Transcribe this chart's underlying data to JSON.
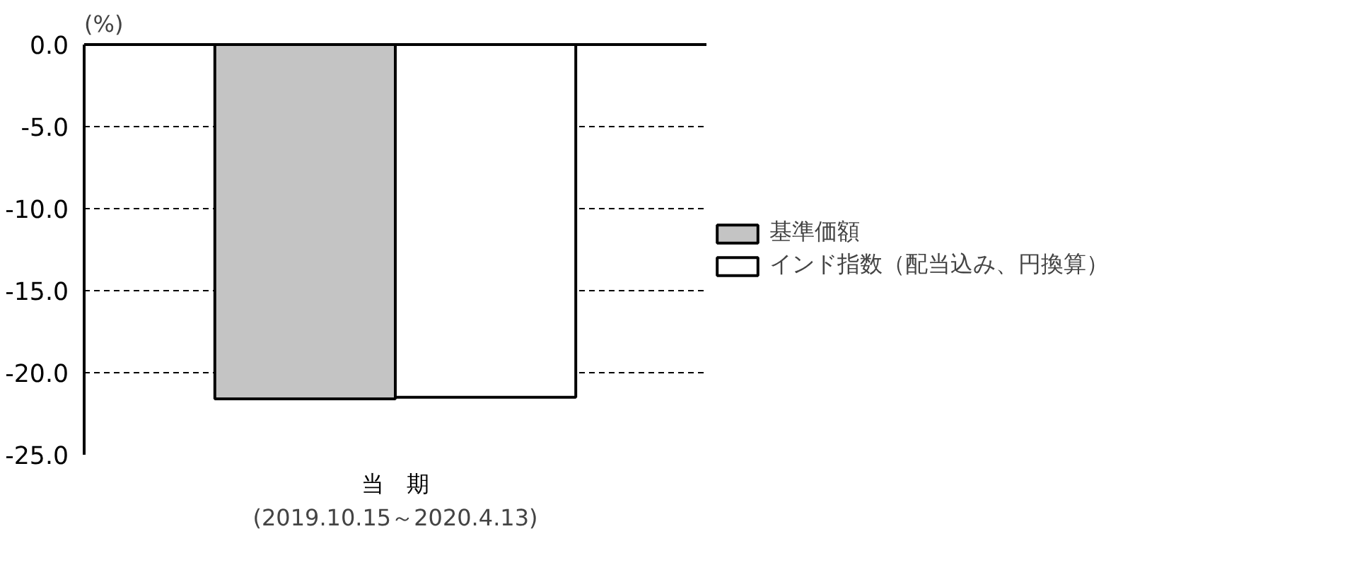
{
  "chart_data": {
    "type": "bar",
    "ylabel": "(%)",
    "xlabel": "(2019.10.15～2020.4.13)",
    "categories": [
      "当　期"
    ],
    "series": [
      {
        "name": "基準価額",
        "color": "#c4c4c4",
        "values": [
          -21.6
        ]
      },
      {
        "name": "インド指数（配当込み、円換算）",
        "color": "#ffffff",
        "values": [
          -21.5
        ]
      }
    ],
    "ylim": [
      -25,
      0
    ],
    "yticks": [
      {
        "value": 0,
        "label": "0.0"
      },
      {
        "value": -5,
        "label": "-5.0"
      },
      {
        "value": -10,
        "label": "-10.0"
      },
      {
        "value": -15,
        "label": "-15.0"
      },
      {
        "value": -20,
        "label": "-20.0"
      },
      {
        "value": -25,
        "label": "-25.0"
      }
    ],
    "grid": "y",
    "legend": "right"
  }
}
